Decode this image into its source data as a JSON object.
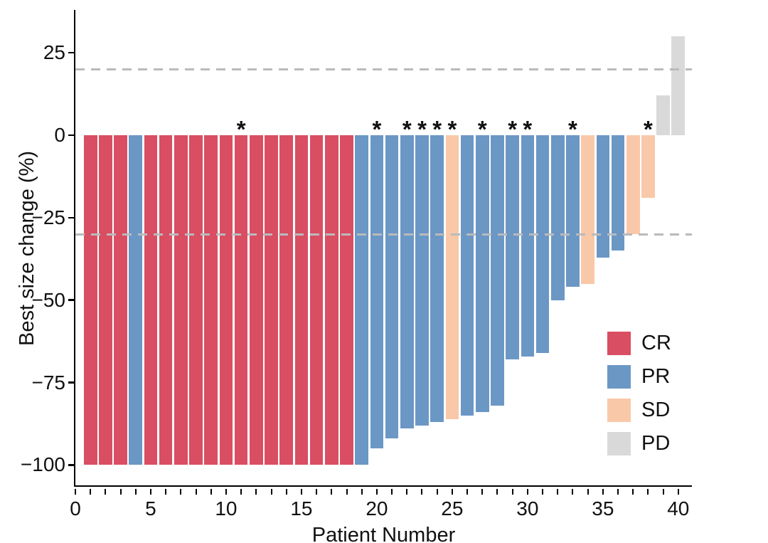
{
  "chart_data": {
    "type": "bar",
    "variant": "waterfall",
    "title": "",
    "xlabel": "Patient Number",
    "ylabel": "Best size change (%)",
    "ylim": [
      -106.6,
      38
    ],
    "xlim": [
      0,
      41
    ],
    "grid": false,
    "legend_position": "inside-lower-right",
    "x_major_ticks": [
      0,
      5,
      10,
      15,
      20,
      25,
      30,
      35,
      40
    ],
    "x_minor_tick_step": 1,
    "y_ticks": [
      25,
      0,
      -25,
      -50,
      -75,
      -100
    ],
    "y_tick_labels": [
      "25",
      "0",
      "−25",
      "−50",
      "−75",
      "−100"
    ],
    "reference_lines": [
      20,
      -30
    ],
    "patients": [
      1,
      2,
      3,
      4,
      5,
      6,
      7,
      8,
      9,
      10,
      11,
      12,
      13,
      14,
      15,
      16,
      17,
      18,
      19,
      20,
      21,
      22,
      23,
      24,
      25,
      26,
      27,
      28,
      29,
      30,
      31,
      32,
      33,
      34,
      35,
      36,
      37,
      38,
      39,
      40
    ],
    "values": [
      -100,
      -100,
      -100,
      -100,
      -100,
      -100,
      -100,
      -100,
      -100,
      -100,
      -100,
      -100,
      -100,
      -100,
      -100,
      -100,
      -100,
      -100,
      -100,
      -95,
      -92,
      -89,
      -88,
      -87,
      -86,
      -85,
      -84,
      -82,
      -68,
      -67,
      -66,
      -50,
      -46,
      -45,
      -37,
      -35,
      -30,
      -19,
      12,
      30
    ],
    "response": [
      "CR",
      "CR",
      "CR",
      "PR",
      "CR",
      "CR",
      "CR",
      "CR",
      "CR",
      "CR",
      "CR",
      "CR",
      "CR",
      "CR",
      "CR",
      "CR",
      "CR",
      "CR",
      "PR",
      "PR",
      "PR",
      "PR",
      "PR",
      "PR",
      "SD",
      "PR",
      "PR",
      "PR",
      "PR",
      "PR",
      "PR",
      "PR",
      "PR",
      "SD",
      "PR",
      "PR",
      "SD",
      "SD",
      "PD",
      "PD"
    ],
    "asterisk_patients": [
      11,
      20,
      22,
      23,
      24,
      25,
      27,
      29,
      30,
      33,
      38
    ],
    "asterisk_symbol": "*",
    "classes": [
      {
        "code": "CR",
        "color": "#d94e62"
      },
      {
        "code": "PR",
        "color": "#6b97c5"
      },
      {
        "code": "SD",
        "color": "#f9c8a9"
      },
      {
        "code": "PD",
        "color": "#d9d9d9"
      }
    ],
    "reference_line_color": "#b9babc",
    "axis_color": "#000000"
  }
}
